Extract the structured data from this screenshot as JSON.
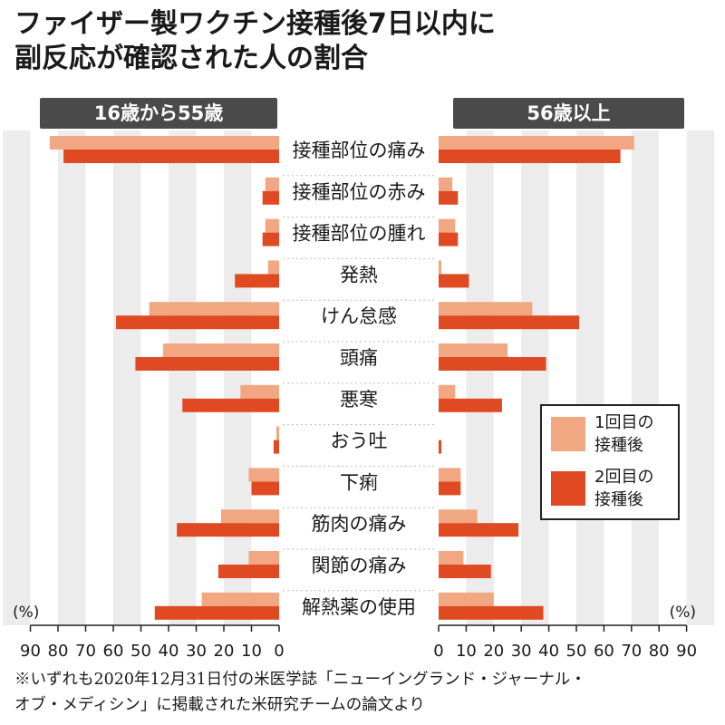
{
  "title_lines": [
    "ファイザー製ワクチン接種後7日以内に",
    "副反応が確認された人の割合"
  ],
  "colors": {
    "first_dose": "#f2a783",
    "second_dose": "#e04a23",
    "grid_band": "#ececec",
    "panel_label_bg": "#4a4a4a"
  },
  "legend": {
    "first": "1回目の\n接種後",
    "second": "2回目の\n接種後"
  },
  "source_note": "※いずれも2020年12月31日付の米医学誌「ニューイングランド・ジャーナル・\nオブ・メディシン」に掲載された米研究チームの論文より",
  "chart_data": {
    "type": "bar",
    "orientation": "horizontal",
    "layout": "butterfly",
    "unit": "(%)",
    "categories": [
      "接種部位の痛み",
      "接種部位の赤み",
      "接種部位の腫れ",
      "発熱",
      "けん怠感",
      "頭痛",
      "悪寒",
      "おう吐",
      "下痢",
      "筋肉の痛み",
      "関節の痛み",
      "解熱薬の使用"
    ],
    "panels": [
      {
        "label": "16歳から55歳",
        "side": "left",
        "xlim": [
          0,
          90
        ],
        "ticks": [
          90,
          80,
          70,
          60,
          50,
          40,
          30,
          20,
          10,
          0
        ],
        "series": [
          {
            "name": "1回目の接種後",
            "values": [
              83,
              5,
              5,
              4,
              47,
              42,
              14,
              1,
              11,
              21,
              11,
              28
            ]
          },
          {
            "name": "2回目の接種後",
            "values": [
              78,
              6,
              6,
              16,
              59,
              52,
              35,
              2,
              10,
              37,
              22,
              45
            ]
          }
        ]
      },
      {
        "label": "56歳以上",
        "side": "right",
        "xlim": [
          0,
          90
        ],
        "ticks": [
          0,
          10,
          20,
          30,
          40,
          50,
          60,
          70,
          80,
          90
        ],
        "series": [
          {
            "name": "1回目の接種後",
            "values": [
              71,
              5,
              6,
              1,
              34,
              25,
              6,
              0,
              8,
              14,
              9,
              20
            ]
          },
          {
            "name": "2回目の接種後",
            "values": [
              66,
              7,
              7,
              11,
              51,
              39,
              23,
              1,
              8,
              29,
              19,
              38
            ]
          }
        ]
      }
    ]
  }
}
